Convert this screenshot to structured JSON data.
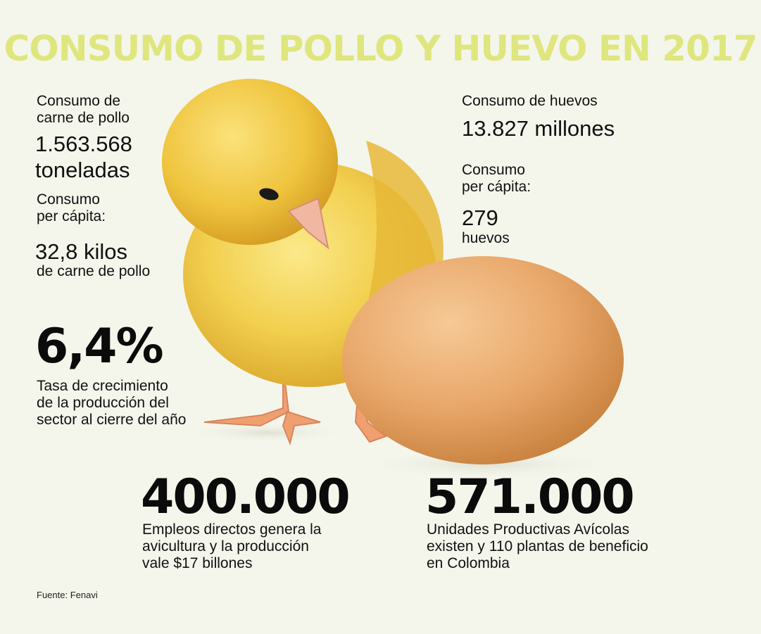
{
  "title": "CONSUMO DE POLLO Y HUEVO EN 2017",
  "chicken": {
    "label_line1": "Consumo de",
    "label_line2": "carne de pollo",
    "value_line1": "1.563.568",
    "value_line2": "toneladas",
    "percap_line1": "Consumo",
    "percap_line2": "per cápita:",
    "percap_value": "32,8 kilos",
    "percap_unit": "de carne de pollo"
  },
  "eggs": {
    "label": "Consumo de huevos",
    "value": "13.827 millones",
    "percap_line1": "Consumo",
    "percap_line2": "per cápita:",
    "percap_value": "279",
    "percap_unit": "huevos"
  },
  "growth": {
    "value": "6,4%",
    "desc_line1": "Tasa de crecimiento",
    "desc_line2": "de la producción del",
    "desc_line3": "sector al cierre del año"
  },
  "jobs": {
    "value": "400.000",
    "desc_line1": "Empleos directos genera la",
    "desc_line2": "avicultura y la producción",
    "desc_line3": "vale $17 billones"
  },
  "units": {
    "value": "571.000",
    "desc_line1": "Unidades Productivas Avícolas",
    "desc_line2": "existen y 110 plantas de beneficio",
    "desc_line3": "en Colombia"
  },
  "source": "Fuente: Fenavi",
  "colors": {
    "background": "#f4f6ec",
    "title": "#dfe67e",
    "chick": "#f2cf4e",
    "egg": "#e9a86b"
  }
}
